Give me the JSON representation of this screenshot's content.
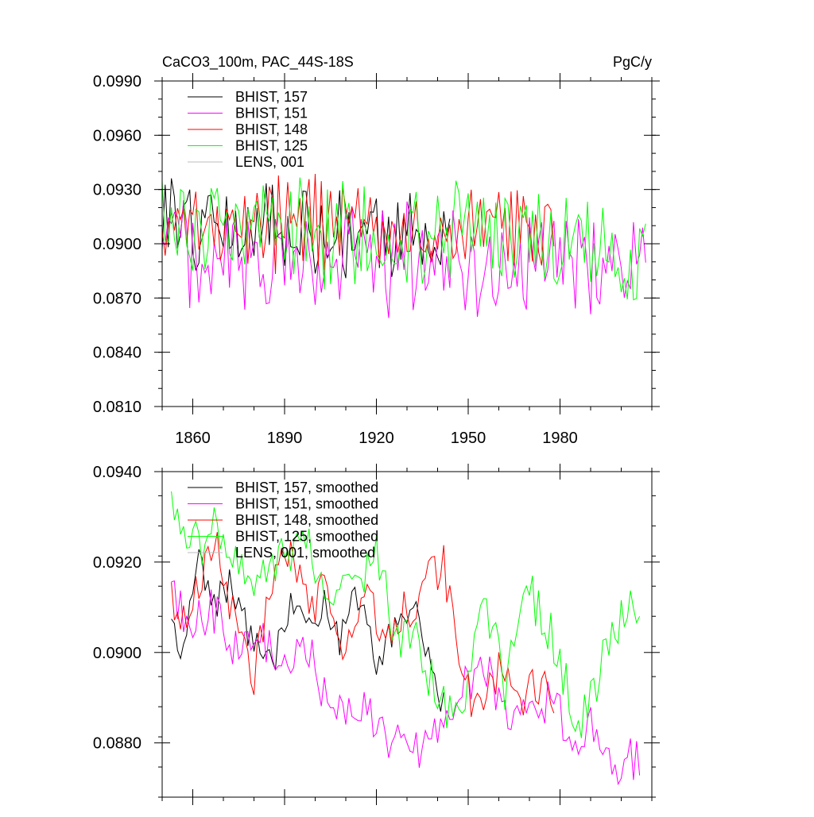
{
  "chart_data": [
    {
      "type": "line",
      "title_left": "CaCO3_100m, PAC_44S-18S",
      "title_right": "PgC/y",
      "xlim": [
        1850,
        2010
      ],
      "ylim": [
        0.081,
        0.099
      ],
      "yticks": [
        "0.0990",
        "0.0960",
        "0.0930",
        "0.0900",
        "0.0870",
        "0.0840",
        "0.0810"
      ],
      "ytick_values": [
        0.099,
        0.096,
        0.093,
        0.09,
        0.087,
        0.084,
        0.081
      ],
      "xticks": [
        "1860",
        "1890",
        "1920",
        "1950",
        "1980"
      ],
      "xtick_values": [
        1860,
        1890,
        1920,
        1950,
        1980
      ],
      "series": [
        {
          "name": "BHIST, 157",
          "color": "#000000",
          "start": 1850,
          "end": 1944,
          "base": 0.091,
          "amp": 0.0022,
          "seed": 157
        },
        {
          "name": "BHIST, 151",
          "color": "#ff00ff",
          "start": 1850,
          "end": 2008,
          "base": 0.0897,
          "amp": 0.0026,
          "seed": 151
        },
        {
          "name": "BHIST, 148",
          "color": "#ff0000",
          "start": 1850,
          "end": 1978,
          "base": 0.0912,
          "amp": 0.0024,
          "seed": 148
        },
        {
          "name": "BHIST, 125",
          "color": "#00ff00",
          "start": 1850,
          "end": 2008,
          "base": 0.0908,
          "amp": 0.0028,
          "seed": 125
        },
        {
          "name": "LENS, 001",
          "color": "#bbbbbb",
          "start": 1850,
          "end": 1850,
          "base": 0.091,
          "amp": 0.0,
          "seed": 1
        }
      ]
    },
    {
      "type": "line",
      "xlim": [
        1850,
        2010
      ],
      "ylim": [
        0.0868,
        0.094
      ],
      "yticks": [
        "0.0940",
        "0.0920",
        "0.0900",
        "0.0880"
      ],
      "ytick_values": [
        0.094,
        0.092,
        0.09,
        0.088
      ],
      "xtick_values": [
        1860,
        1890,
        1920,
        1950,
        1980
      ],
      "series": [
        {
          "name": "BHIST, 157, smoothed",
          "color": "#000000",
          "start": 1853,
          "end": 1942,
          "knots": [
            [
              1853,
              0.091
            ],
            [
              1856,
              0.0897
            ],
            [
              1862,
              0.0922
            ],
            [
              1866,
              0.091
            ],
            [
              1872,
              0.0915
            ],
            [
              1880,
              0.0902
            ],
            [
              1886,
              0.0898
            ],
            [
              1892,
              0.091
            ],
            [
              1898,
              0.0905
            ],
            [
              1903,
              0.0912
            ],
            [
              1908,
              0.0903
            ],
            [
              1914,
              0.0913
            ],
            [
              1920,
              0.0897
            ],
            [
              1926,
              0.0905
            ],
            [
              1932,
              0.0912
            ],
            [
              1936,
              0.0903
            ],
            [
              1942,
              0.0888
            ]
          ],
          "jitter": 0.0004,
          "seed": 57
        },
        {
          "name": "BHIST, 151, smoothed",
          "color": "#ff00ff",
          "start": 1853,
          "end": 2006,
          "knots": [
            [
              1853,
              0.0913
            ],
            [
              1860,
              0.0905
            ],
            [
              1866,
              0.091
            ],
            [
              1874,
              0.09
            ],
            [
              1882,
              0.0903
            ],
            [
              1890,
              0.0897
            ],
            [
              1898,
              0.09
            ],
            [
              1906,
              0.0886
            ],
            [
              1912,
              0.0888
            ],
            [
              1920,
              0.0885
            ],
            [
              1926,
              0.088
            ],
            [
              1934,
              0.0878
            ],
            [
              1940,
              0.0884
            ],
            [
              1948,
              0.0893
            ],
            [
              1956,
              0.0896
            ],
            [
              1962,
              0.0887
            ],
            [
              1970,
              0.0888
            ],
            [
              1978,
              0.089
            ],
            [
              1984,
              0.0877
            ],
            [
              1990,
              0.0884
            ],
            [
              1996,
              0.0874
            ],
            [
              2006,
              0.0877
            ]
          ],
          "jitter": 0.0005,
          "seed": 51
        },
        {
          "name": "BHIST, 148, smoothed",
          "color": "#ff0000",
          "start": 1853,
          "end": 1978,
          "knots": [
            [
              1853,
              0.0915
            ],
            [
              1856,
              0.0905
            ],
            [
              1862,
              0.0915
            ],
            [
              1868,
              0.0922
            ],
            [
              1874,
              0.0905
            ],
            [
              1880,
              0.0895
            ],
            [
              1886,
              0.0915
            ],
            [
              1892,
              0.0925
            ],
            [
              1898,
              0.091
            ],
            [
              1904,
              0.0914
            ],
            [
              1910,
              0.09
            ],
            [
              1916,
              0.0912
            ],
            [
              1922,
              0.0905
            ],
            [
              1928,
              0.0908
            ],
            [
              1936,
              0.0915
            ],
            [
              1942,
              0.092
            ],
            [
              1946,
              0.0903
            ],
            [
              1952,
              0.0888
            ],
            [
              1956,
              0.0893
            ],
            [
              1962,
              0.0898
            ],
            [
              1966,
              0.089
            ],
            [
              1972,
              0.0893
            ],
            [
              1978,
              0.089
            ]
          ],
          "jitter": 0.0005,
          "seed": 48
        },
        {
          "name": "BHIST, 125, smoothed",
          "color": "#00ff00",
          "start": 1853,
          "end": 2006,
          "knots": [
            [
              1853,
              0.093
            ],
            [
              1860,
              0.0922
            ],
            [
              1866,
              0.0928
            ],
            [
              1872,
              0.092
            ],
            [
              1880,
              0.0915
            ],
            [
              1890,
              0.092
            ],
            [
              1898,
              0.0925
            ],
            [
              1904,
              0.0913
            ],
            [
              1912,
              0.0915
            ],
            [
              1920,
              0.092
            ],
            [
              1926,
              0.0905
            ],
            [
              1934,
              0.0902
            ],
            [
              1940,
              0.089
            ],
            [
              1946,
              0.0883
            ],
            [
              1950,
              0.0895
            ],
            [
              1954,
              0.0915
            ],
            [
              1958,
              0.0905
            ],
            [
              1962,
              0.089
            ],
            [
              1966,
              0.0905
            ],
            [
              1970,
              0.0913
            ],
            [
              1976,
              0.0905
            ],
            [
              1982,
              0.0892
            ],
            [
              1988,
              0.0885
            ],
            [
              1994,
              0.09
            ],
            [
              2002,
              0.0912
            ],
            [
              2006,
              0.091
            ]
          ],
          "jitter": 0.0006,
          "seed": 25
        },
        {
          "name": "LENS, 001, smoothed",
          "color": "#bbbbbb",
          "start": 1853,
          "end": 1853,
          "knots": [
            [
              1853,
              0.091
            ]
          ],
          "jitter": 0.0,
          "seed": 2
        }
      ]
    }
  ]
}
